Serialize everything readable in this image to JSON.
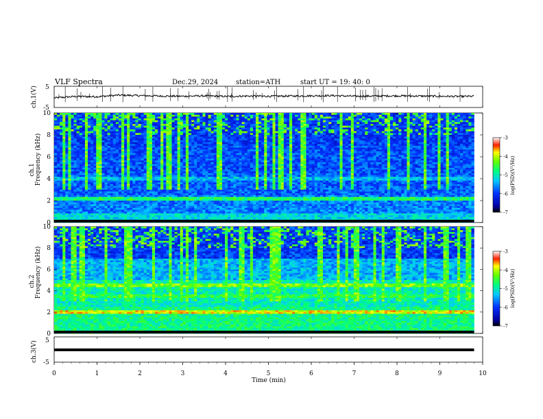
{
  "header": {
    "title": "VLF  Spectra",
    "date": "Dec.29, 2024",
    "station": "station=ATH",
    "start_ut": "start  UT  =    19: 40: 0"
  },
  "chart_data": [
    {
      "type": "line",
      "panel": "ch1-waveform",
      "ylabel": "ch.1(V)",
      "yticks": [
        "5",
        "-5"
      ],
      "ylim": [
        -5,
        5
      ],
      "xlim": [
        0,
        10
      ],
      "x": [
        0,
        0.5,
        1,
        1.5,
        2,
        2.5,
        3,
        3.5,
        4,
        4.5,
        5,
        5.5,
        6,
        6.5,
        7,
        7.5,
        8,
        8.5,
        9,
        9.5,
        9.8
      ],
      "y": [
        -0.5,
        0.2,
        0.1,
        0.8,
        0.6,
        0.4,
        0.3,
        0.5,
        0.2,
        0.4,
        0.3,
        0.4,
        0.5,
        0.6,
        0.3,
        0.4,
        0.5,
        0.4,
        0.3,
        0.2,
        0.3
      ]
    },
    {
      "type": "heatmap",
      "panel": "ch1-spectrogram",
      "ylabel": "ch.1",
      "ylabel2": "Frequency  (kHz)",
      "yticks": [
        "0",
        "2",
        "4",
        "6",
        "8",
        "10"
      ],
      "ylim": [
        0,
        10
      ],
      "xlim": [
        0,
        9.8
      ],
      "colorbar": {
        "label": "log(PSD)(V²/Hz)",
        "ticks": [
          "-3",
          "-4",
          "-5",
          "-6",
          "-7"
        ],
        "range": [
          -7,
          -3
        ]
      }
    },
    {
      "type": "heatmap",
      "panel": "ch2-spectrogram",
      "ylabel": "ch.2",
      "ylabel2": "Frequency  (kHz)",
      "yticks": [
        "0",
        "2",
        "4",
        "6",
        "8",
        "10"
      ],
      "ylim": [
        0,
        10
      ],
      "xlim": [
        0,
        9.8
      ],
      "colorbar": {
        "label": "log(PSD)(V²/Hz)",
        "ticks": [
          "-3",
          "-4",
          "-5",
          "-6",
          "-7"
        ],
        "range": [
          -7,
          -3
        ]
      }
    },
    {
      "type": "line",
      "panel": "ch3-waveform",
      "ylabel": "ch.3(V)",
      "yticks": [
        "5",
        "-5"
      ],
      "ylim": [
        -5,
        5
      ],
      "xlim": [
        0,
        10
      ],
      "x": [
        0,
        9.8
      ],
      "y": [
        0,
        0
      ]
    }
  ],
  "xaxis": {
    "label": "Time  (min)",
    "ticks": [
      "0",
      "1",
      "2",
      "3",
      "4",
      "5",
      "6",
      "7",
      "8",
      "9",
      "10"
    ],
    "range": [
      0,
      10
    ]
  }
}
